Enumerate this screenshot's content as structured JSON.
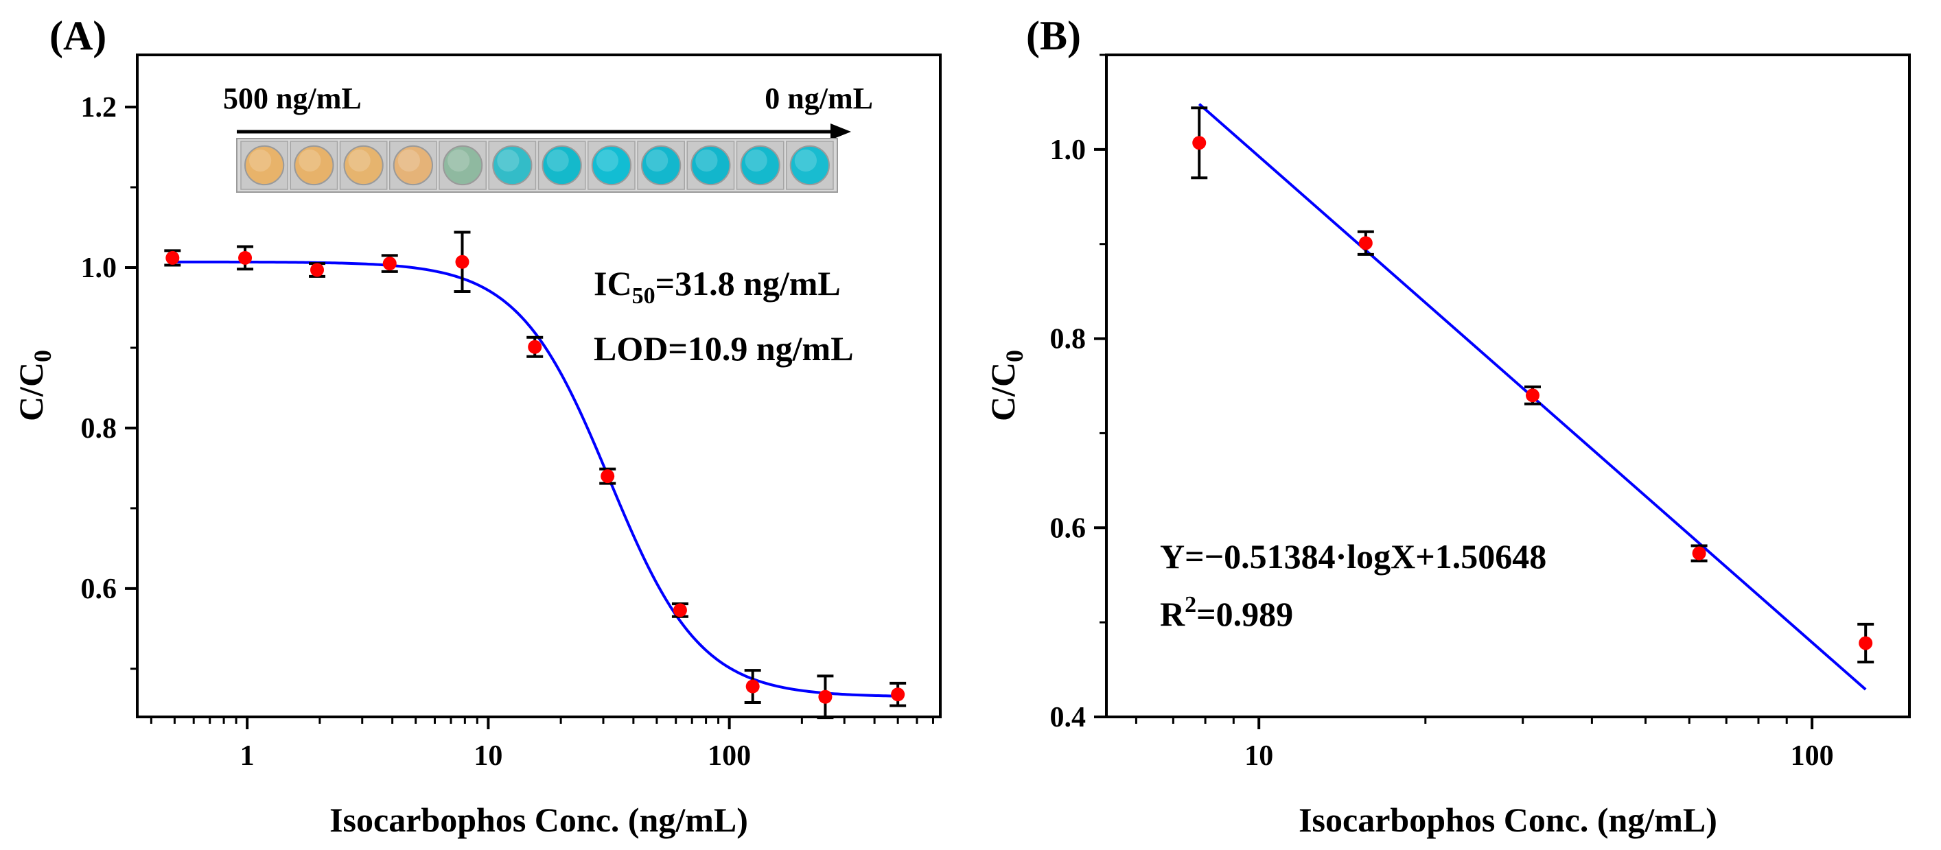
{
  "panels": [
    {
      "label": "(A)",
      "inset": {
        "left_label": "500 ng/mL",
        "right_label": "0 ng/mL",
        "well_colors": [
          "#e8b36a",
          "#e7b26a",
          "#e6b46e",
          "#e5b378",
          "#8fb9a0",
          "#33bcc8",
          "#14b9cb",
          "#12bdd3",
          "#13b7cd",
          "#12b6cc",
          "#14b9cd",
          "#19bcd0"
        ]
      },
      "annotations": [
        {
          "main": "IC",
          "sub": "50",
          "rest": "=31.8 ng/mL"
        },
        {
          "main": "LOD=10.9 ng/mL",
          "sub": "",
          "rest": ""
        }
      ]
    },
    {
      "label": "(B)",
      "annotations": [
        {
          "main": "Y=−0.51384·logX+1.50648",
          "sup": "",
          "rest": ""
        },
        {
          "main": "R",
          "sup": "2",
          "rest": "=0.989"
        }
      ]
    }
  ],
  "colors": {
    "points": "#ff0000",
    "fit": "#0000ff",
    "axes": "#000000"
  },
  "chart_data": [
    {
      "type": "scatter",
      "xlabel": "Isocarbophos Conc. (ng/mL)",
      "ylabel_main": "C/C",
      "ylabel_sub": "0",
      "x_scale": "log",
      "xlim": [
        0.35,
        750
      ],
      "ylim": [
        0.44,
        1.265
      ],
      "x_ticks": [
        1,
        10,
        100
      ],
      "x_tick_labels": [
        "1",
        "10",
        "100"
      ],
      "y_ticks": [
        0.6,
        0.8,
        1.0,
        1.2
      ],
      "y_tick_labels": [
        "0.6",
        "0.8",
        "1.0",
        "1.2"
      ],
      "x": [
        0.49,
        0.98,
        1.95,
        3.9,
        7.8,
        15.6,
        31.25,
        62.5,
        125,
        250,
        500
      ],
      "y": [
        1.012,
        1.012,
        0.997,
        1.005,
        1.007,
        0.901,
        0.74,
        0.573,
        0.478,
        0.465,
        0.468
      ],
      "error": [
        0.009,
        0.014,
        0.008,
        0.01,
        0.037,
        0.012,
        0.009,
        0.008,
        0.02,
        0.026,
        0.014
      ],
      "fit": {
        "type": "four-parameter logistic",
        "top": 1.007,
        "bottom": 0.465,
        "ic50": 31.8,
        "slope": 2.3
      }
    },
    {
      "type": "scatter",
      "xlabel": "Isocarbophos Conc. (ng/mL)",
      "ylabel_main": "C/C",
      "ylabel_sub": "0",
      "x_scale": "log",
      "xlim": [
        5.3,
        150
      ],
      "ylim": [
        0.4,
        1.1
      ],
      "x_ticks": [
        10,
        100
      ],
      "x_tick_labels": [
        "10",
        "100"
      ],
      "y_ticks": [
        0.4,
        0.6,
        0.8,
        1.0
      ],
      "y_tick_labels": [
        "0.4",
        "0.6",
        "0.8",
        "1.0"
      ],
      "x": [
        7.8,
        15.6,
        31.25,
        62.5,
        125
      ],
      "y": [
        1.007,
        0.901,
        0.74,
        0.573,
        0.478
      ],
      "error": [
        0.037,
        0.012,
        0.009,
        0.008,
        0.02
      ],
      "fit": {
        "type": "linear-log",
        "slope": -0.51384,
        "intercept": 1.50648,
        "x_range": [
          7.8,
          125
        ]
      }
    }
  ]
}
